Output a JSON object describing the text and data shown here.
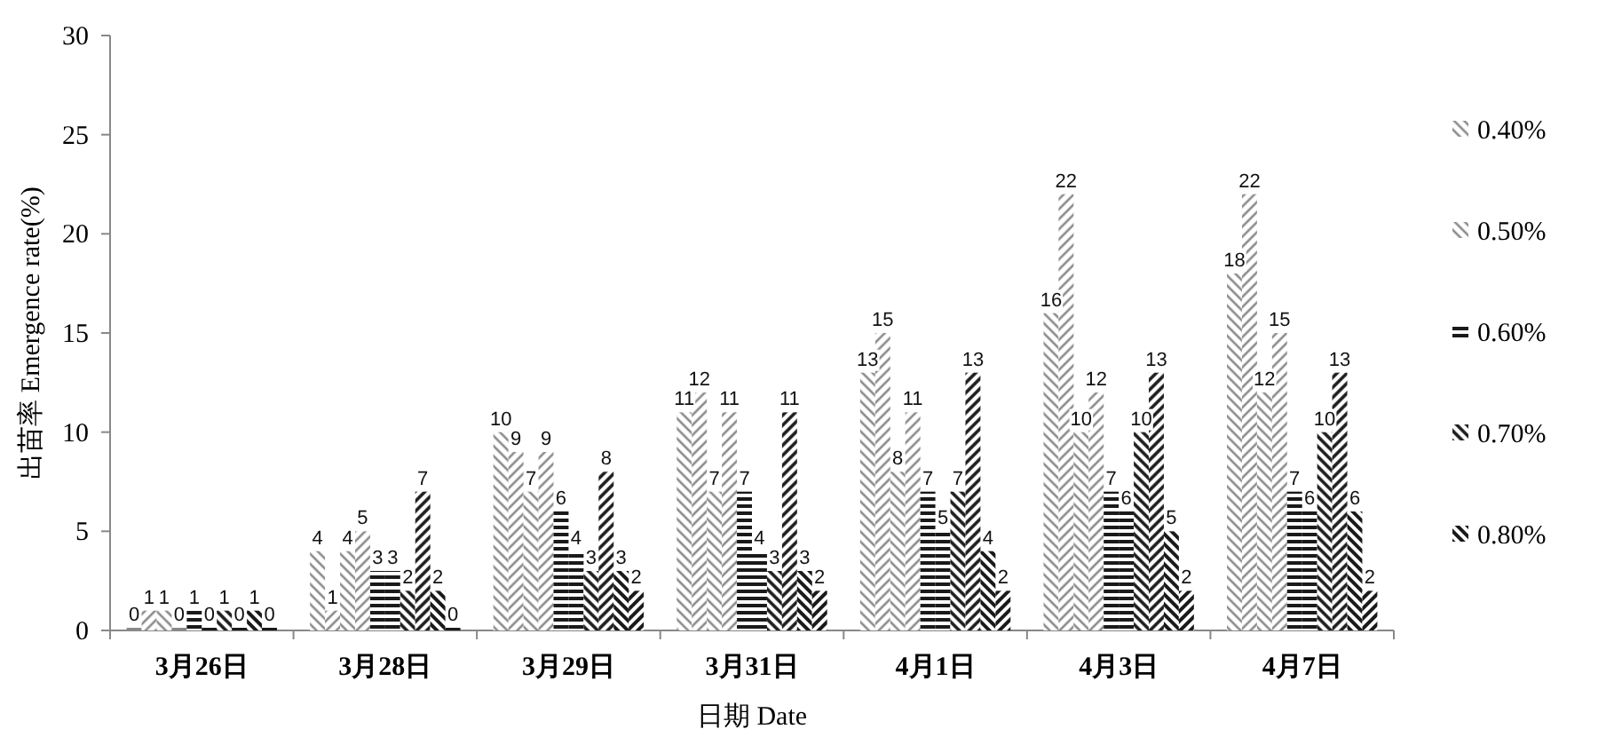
{
  "chart_data": {
    "type": "bar",
    "xlabel": "日期 Date",
    "ylabel": "出苗率 Emergence rate(%)",
    "categories": [
      "3月26日",
      "3月28日",
      "3月29日",
      "3月31日",
      "4月1日",
      "4月3日",
      "4月7日"
    ],
    "series": [
      {
        "name": "0.40%",
        "color": "#8a8a8a",
        "values": [
          0,
          4,
          10,
          11,
          13,
          16,
          18
        ]
      },
      {
        "color": "#8a8a8a",
        "values": [
          1,
          1,
          9,
          12,
          15,
          22,
          22
        ]
      },
      {
        "name": "0.50%",
        "color": "#8a8a8a",
        "values": [
          1,
          4,
          7,
          7,
          8,
          10,
          12
        ]
      },
      {
        "color": "#8a8a8a",
        "values": [
          0,
          5,
          9,
          11,
          11,
          12,
          15
        ]
      },
      {
        "name": "0.60%",
        "color": "#1a1a1a",
        "values": [
          1,
          3,
          6,
          7,
          7,
          7,
          7
        ]
      },
      {
        "color": "#1a1a1a",
        "values": [
          0,
          3,
          4,
          4,
          5,
          6,
          6
        ]
      },
      {
        "name": "0.70%",
        "color": "#1a1a1a",
        "values": [
          1,
          2,
          3,
          3,
          7,
          10,
          10
        ]
      },
      {
        "color": "#1a1a1a",
        "values": [
          0,
          7,
          8,
          11,
          13,
          13,
          13
        ]
      },
      {
        "name": "0.80%",
        "color": "#1a1a1a",
        "values": [
          1,
          2,
          3,
          3,
          4,
          5,
          6
        ]
      },
      {
        "color": "#1a1a1a",
        "values": [
          0,
          0,
          2,
          2,
          2,
          2,
          2
        ]
      }
    ],
    "ylim": [
      0,
      30
    ],
    "yticks": [
      0,
      5,
      10,
      15,
      20,
      25,
      30
    ],
    "data_labels": true,
    "legend": "right",
    "grid": false
  }
}
